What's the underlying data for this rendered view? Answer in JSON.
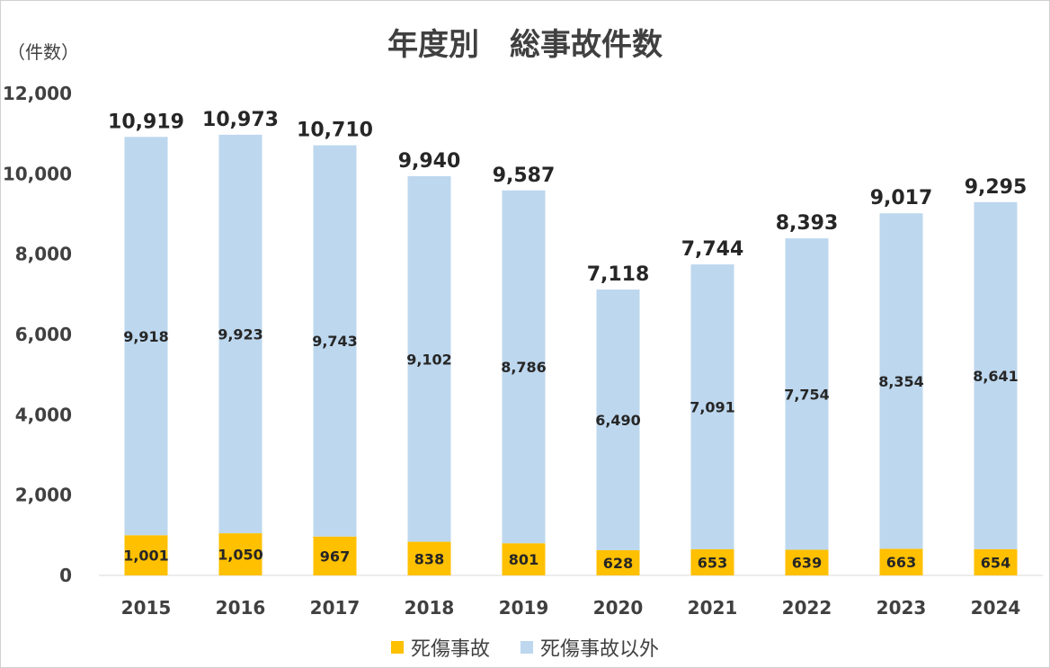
{
  "chart_data": {
    "type": "bar",
    "stacked": true,
    "title": "年度別　総事故件数",
    "unit_label": "（件数）",
    "categories": [
      "2015",
      "2016",
      "2017",
      "2018",
      "2019",
      "2020",
      "2021",
      "2022",
      "2023",
      "2024"
    ],
    "series": [
      {
        "name": "死傷事故",
        "color": "#FFC000",
        "values": [
          1001,
          1050,
          967,
          838,
          801,
          628,
          653,
          639,
          663,
          654
        ],
        "labels": [
          "1,001",
          "1,050",
          "967",
          "838",
          "801",
          "628",
          "653",
          "639",
          "663",
          "654"
        ]
      },
      {
        "name": "死傷事故以外",
        "color": "#BDD7EE",
        "values": [
          9918,
          9923,
          9743,
          9102,
          8786,
          6490,
          7091,
          7754,
          8354,
          8641
        ],
        "labels": [
          "9,918",
          "9,923",
          "9,743",
          "9,102",
          "8,786",
          "6,490",
          "7,091",
          "7,754",
          "8,354",
          "8,641"
        ]
      }
    ],
    "totals": [
      10919,
      10973,
      10710,
      9940,
      9587,
      7118,
      7744,
      8393,
      9017,
      9295
    ],
    "total_labels": [
      "10,919",
      "10,973",
      "10,710",
      "9,940",
      "9,587",
      "7,118",
      "7,744",
      "8,393",
      "9,017",
      "9,295"
    ],
    "ylim": [
      0,
      12000
    ],
    "y_ticks": [
      0,
      2000,
      4000,
      6000,
      8000,
      10000,
      12000
    ],
    "y_tick_labels": [
      "0",
      "2,000",
      "4,000",
      "6,000",
      "8,000",
      "10,000",
      "12,000"
    ],
    "grid": false,
    "legend_position": "bottom"
  }
}
